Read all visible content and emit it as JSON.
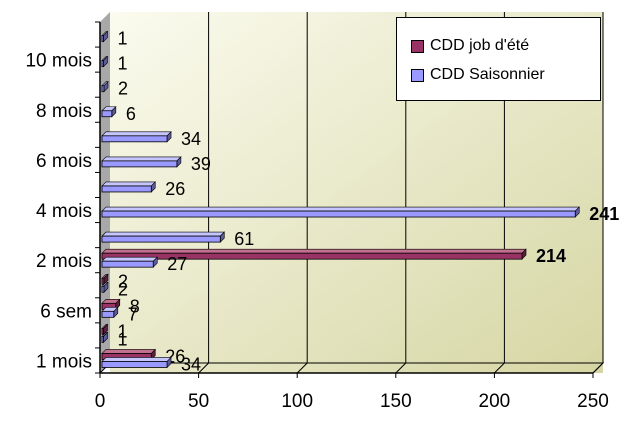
{
  "chart_data": {
    "type": "bar",
    "orientation": "horizontal",
    "title": "",
    "xlabel": "",
    "ylabel": "",
    "xlim": [
      0,
      250
    ],
    "x_ticks": [
      0,
      50,
      100,
      150,
      200,
      250
    ],
    "y_tick_labels": [
      "1 mois",
      "6 sem",
      "2 mois",
      "4 mois",
      "6 mois",
      "8 mois",
      "10 mois"
    ],
    "categories_bottom_to_top": [
      "1 mois",
      "",
      "6 sem",
      "",
      "2 mois",
      "",
      "4 mois",
      "",
      "6 mois",
      "",
      "8 mois",
      "",
      "10 mois",
      ""
    ],
    "series": [
      {
        "name": "CDD job d'été",
        "color": "#993366",
        "values": [
          26,
          1,
          8,
          2,
          214,
          null,
          null,
          null,
          null,
          null,
          null,
          null,
          null,
          null
        ]
      },
      {
        "name": "CDD Saisonnier",
        "color": "#9999ff",
        "values": [
          34,
          1,
          7,
          2,
          27,
          61,
          241,
          26,
          39,
          34,
          6,
          2,
          1,
          1
        ]
      }
    ],
    "grid": "vertical",
    "legend_position": "top-right",
    "background": "#f4f4dc",
    "bold_value_labels": [
      214,
      241
    ]
  }
}
